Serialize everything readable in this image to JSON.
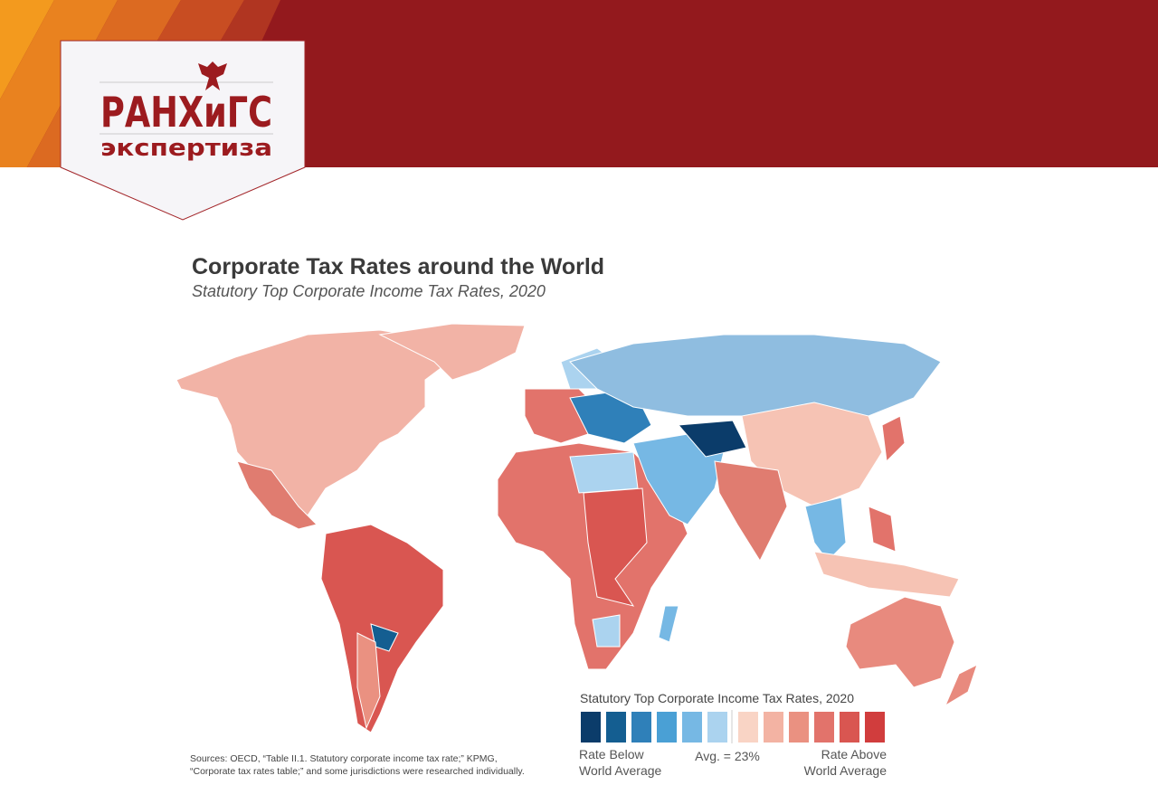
{
  "header": {
    "logo_main": "РАНХиГС",
    "logo_sub": "экспертиза"
  },
  "title": "Corporate Tax Rates around the World",
  "subtitle": "Statutory Top Corporate Income Tax Rates, 2020",
  "legend": {
    "title": "Statutory Top Corporate Income Tax Rates, 2020",
    "colors": [
      "#0b3c6a",
      "#145e91",
      "#2f80b9",
      "#4aa0d5",
      "#76b8e4",
      "#abd3ef",
      "#f9d4c5",
      "#f3b3a3",
      "#ea9181",
      "#e2736b",
      "#d95651",
      "#d13d3d"
    ],
    "below": [
      "Rate Below",
      "World Average"
    ],
    "avg": "Avg. = 23%",
    "above": [
      "Rate Above",
      "World Average"
    ]
  },
  "sources": [
    "Sources: OECD, “Table II.1. Statutory corporate income tax rate;” KPMG,",
    "“Corporate tax rates table;” and some jurisdictions were researched individually."
  ]
}
